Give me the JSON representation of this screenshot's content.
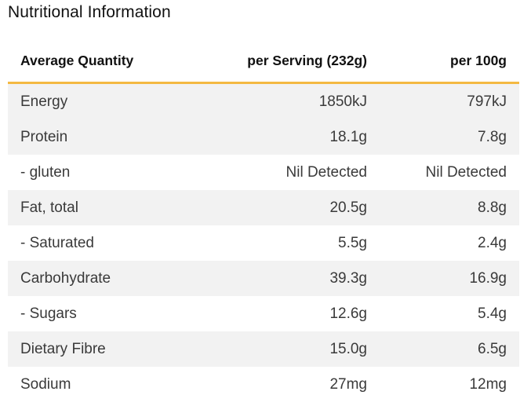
{
  "title": "Nutritional Information",
  "headers": {
    "col1": "Average Quantity",
    "col2": "per Serving (232g)",
    "col3": "per 100g"
  },
  "rows": [
    {
      "name": "Energy",
      "per_serving": "1850kJ",
      "per_100g": "797kJ"
    },
    {
      "name": "Protein",
      "per_serving": "18.1g",
      "per_100g": "7.8g"
    },
    {
      "name": "- gluten",
      "per_serving": "Nil Detected",
      "per_100g": "Nil Detected"
    },
    {
      "name": "Fat, total",
      "per_serving": "20.5g",
      "per_100g": "8.8g"
    },
    {
      "name": "- Saturated",
      "per_serving": "5.5g",
      "per_100g": "2.4g"
    },
    {
      "name": "Carbohydrate",
      "per_serving": "39.3g",
      "per_100g": "16.9g"
    },
    {
      "name": "- Sugars",
      "per_serving": "12.6g",
      "per_100g": "5.4g"
    },
    {
      "name": "Dietary Fibre",
      "per_serving": "15.0g",
      "per_100g": "6.5g"
    },
    {
      "name": "Sodium",
      "per_serving": "27mg",
      "per_100g": "12mg"
    }
  ],
  "colors": {
    "header_rule": "#f4b942",
    "row_shade": "#f2f2f2"
  }
}
